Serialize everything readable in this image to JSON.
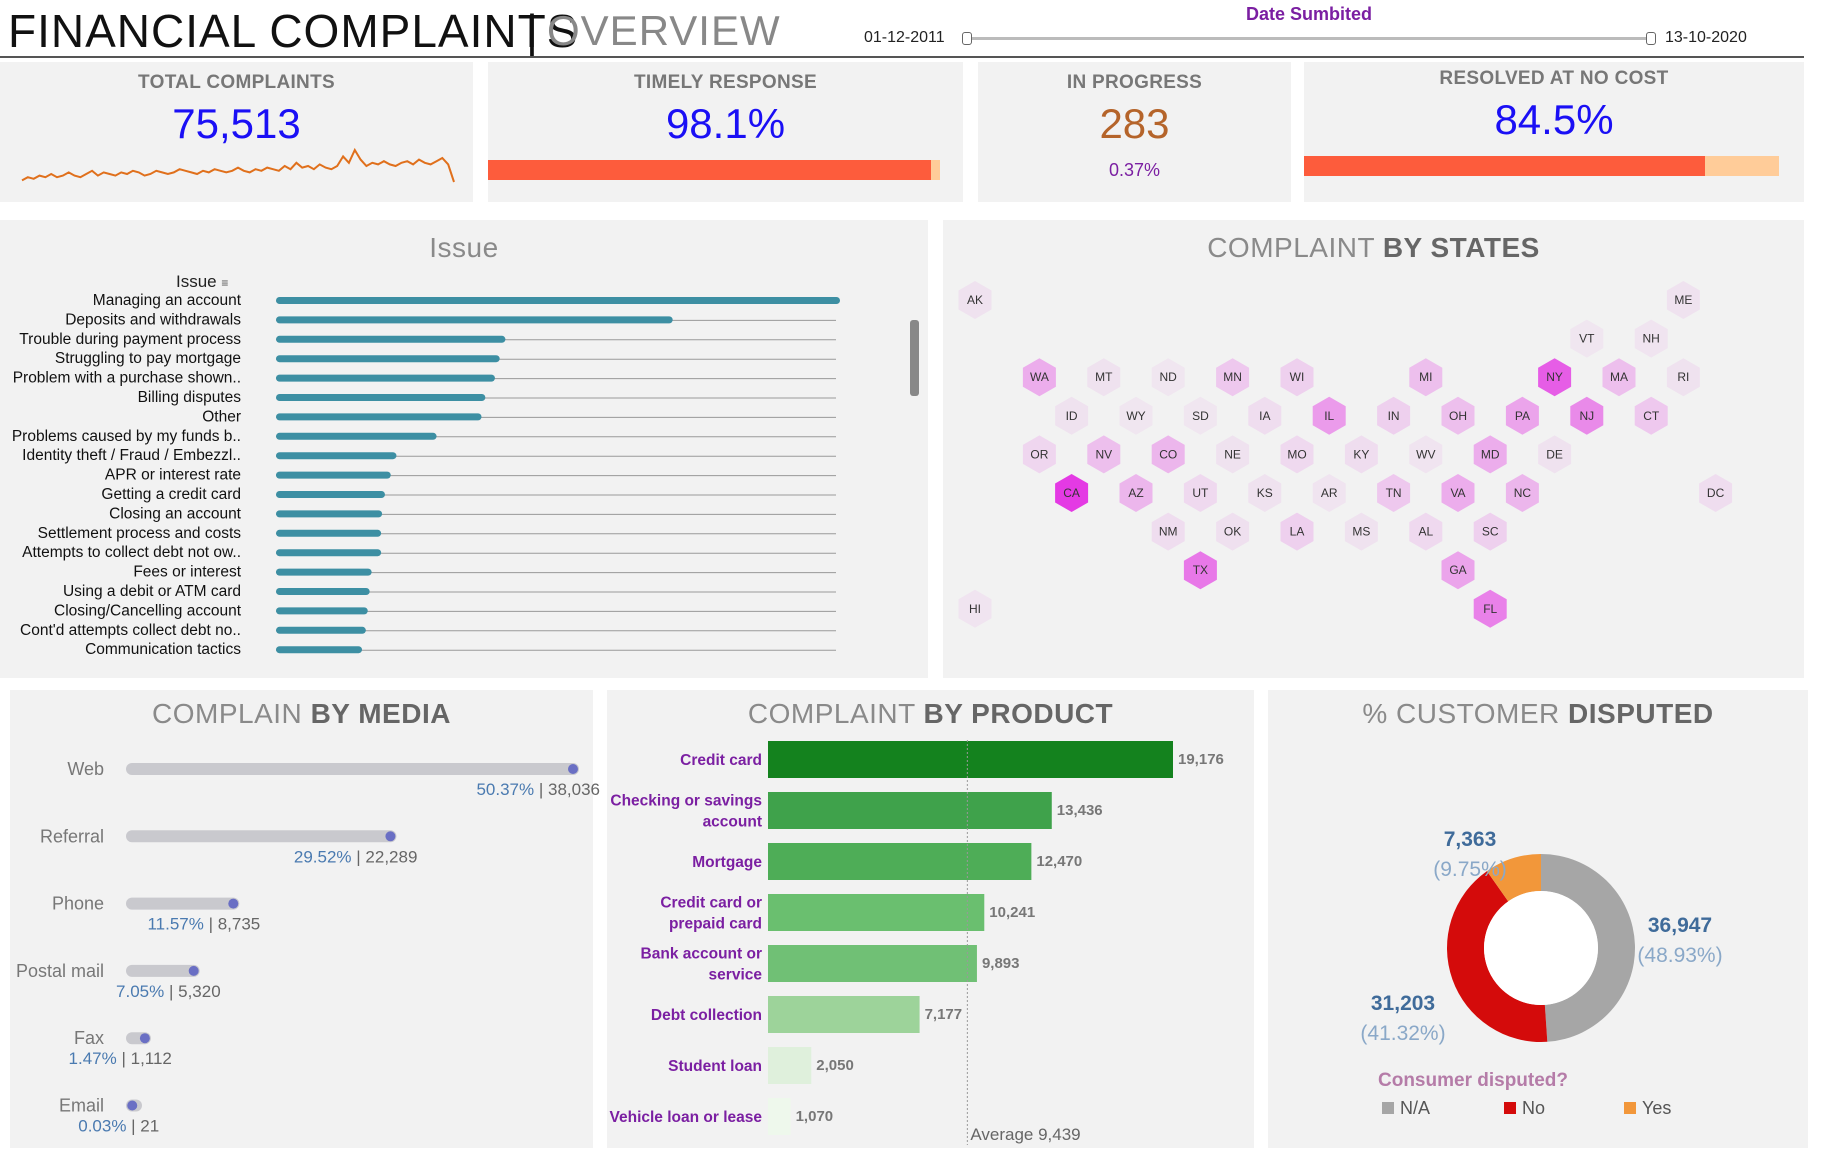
{
  "header": {
    "title": "FINANCIAL COMPLAINTS",
    "separator": "|",
    "subtitle": "OVERVIEW",
    "date_label": "Date Sumbited",
    "date_start": "01-12-2011",
    "date_end": "13-10-2020"
  },
  "kpis": {
    "total": {
      "title": "TOTAL COMPLAINTS",
      "value": "75,513"
    },
    "timely": {
      "title": "TIMELY RESPONSE",
      "value": "98.1%",
      "fraction": 0.981
    },
    "progress": {
      "title": "IN PROGRESS",
      "value": "283",
      "sub": "0.37%"
    },
    "resolved": {
      "title": "RESOLVED AT NO COST",
      "value": "84.5%",
      "fraction": 0.845
    }
  },
  "colors": {
    "blue": "#1a0ff5",
    "bar_orange": "#fd5c3c",
    "bar_light": "#ffcc99",
    "teal": "#3d8fa3",
    "purple": "#7b1fa2",
    "donut_na": "#a6a6a6",
    "donut_no": "#d40b0b",
    "donut_yes": "#f2973a"
  },
  "issue_panel": {
    "title": "Issue",
    "header": "Issue"
  },
  "states_panel": {
    "title_light": "COMPLAINT ",
    "title_bold": "BY STATES"
  },
  "media_panel": {
    "title_light": "COMPLAIN ",
    "title_bold": "BY MEDIA"
  },
  "product_panel": {
    "title_light": "COMPLAINT ",
    "title_bold": "BY PRODUCT",
    "average_label": "Average 9,439"
  },
  "disputed_panel": {
    "title_light": "% CUSTOMER ",
    "title_bold": "DISPUTED",
    "legend_title": "Consumer disputed?",
    "legend": [
      "N/A",
      "No",
      "Yes"
    ]
  },
  "chart_data": [
    {
      "type": "line",
      "title": "Total complaints trend (sparkline)",
      "values": [
        3,
        5,
        4,
        6,
        5,
        7,
        5,
        6,
        8,
        6,
        5,
        7,
        9,
        6,
        8,
        7,
        6,
        8,
        7,
        9,
        8,
        6,
        7,
        9,
        8,
        7,
        8,
        10,
        9,
        8,
        7,
        9,
        8,
        10,
        9,
        8,
        9,
        11,
        9,
        8,
        10,
        9,
        11,
        10,
        9,
        12,
        10,
        14,
        11,
        12,
        10,
        13,
        11,
        10,
        12,
        18,
        14,
        22,
        16,
        12,
        14,
        13,
        15,
        13,
        12,
        14,
        15,
        13,
        16,
        14,
        13,
        15,
        17,
        13,
        2
      ]
    },
    {
      "type": "bar",
      "title": "Issue",
      "orientation": "horizontal",
      "categories": [
        "Managing an account",
        "Deposits and withdrawals",
        "Trouble during payment process",
        "Struggling to pay mortgage",
        "Problem with a purchase shown..",
        "Billing disputes",
        "Other",
        "Problems caused by my funds b..",
        "Identity theft / Fraud / Embezzl..",
        "APR or interest rate",
        "Getting a credit card",
        "Closing an account",
        "Settlement process and costs",
        "Attempts to collect debt not ow..",
        "Fees or interest",
        "Using a debit or ATM card",
        "Closing/Cancelling account",
        "Cont'd attempts collect debt no..",
        "Communication tactics"
      ],
      "values": [
        5900,
        4150,
        2400,
        2340,
        2290,
        2190,
        2150,
        1680,
        1260,
        1200,
        1140,
        1110,
        1100,
        1100,
        1000,
        980,
        960,
        940,
        900
      ],
      "xlim": [
        0,
        5900
      ]
    },
    {
      "type": "heatmap",
      "title": "COMPLAINT BY STATES",
      "states": [
        {
          "s": "AK",
          "v": 0.05,
          "col": 0,
          "row": 0
        },
        {
          "s": "ME",
          "v": 0.05,
          "col": 11,
          "row": 0
        },
        {
          "s": "VT",
          "v": 0.03,
          "col": 9.5,
          "row": 1
        },
        {
          "s": "NH",
          "v": 0.04,
          "col": 10.5,
          "row": 1
        },
        {
          "s": "WA",
          "v": 0.35,
          "col": 1,
          "row": 2
        },
        {
          "s": "MT",
          "v": 0.05,
          "col": 2,
          "row": 2
        },
        {
          "s": "ND",
          "v": 0.03,
          "col": 3,
          "row": 2
        },
        {
          "s": "MN",
          "v": 0.2,
          "col": 4,
          "row": 2
        },
        {
          "s": "WI",
          "v": 0.15,
          "col": 5,
          "row": 2
        },
        {
          "s": "MI",
          "v": 0.25,
          "col": 7,
          "row": 2
        },
        {
          "s": "NY",
          "v": 0.8,
          "col": 9,
          "row": 2
        },
        {
          "s": "MA",
          "v": 0.25,
          "col": 10,
          "row": 2
        },
        {
          "s": "RI",
          "v": 0.05,
          "col": 11,
          "row": 2
        },
        {
          "s": "ID",
          "v": 0.05,
          "col": 1.5,
          "row": 3
        },
        {
          "s": "WY",
          "v": 0.03,
          "col": 2.5,
          "row": 3
        },
        {
          "s": "SD",
          "v": 0.03,
          "col": 3.5,
          "row": 3
        },
        {
          "s": "IA",
          "v": 0.08,
          "col": 4.5,
          "row": 3
        },
        {
          "s": "IL",
          "v": 0.45,
          "col": 5.5,
          "row": 3
        },
        {
          "s": "IN",
          "v": 0.15,
          "col": 6.5,
          "row": 3
        },
        {
          "s": "OH",
          "v": 0.25,
          "col": 7.5,
          "row": 3
        },
        {
          "s": "PA",
          "v": 0.4,
          "col": 8.5,
          "row": 3
        },
        {
          "s": "NJ",
          "v": 0.55,
          "col": 9.5,
          "row": 3
        },
        {
          "s": "CT",
          "v": 0.2,
          "col": 10.5,
          "row": 3
        },
        {
          "s": "OR",
          "v": 0.12,
          "col": 1,
          "row": 4
        },
        {
          "s": "NV",
          "v": 0.25,
          "col": 2,
          "row": 4
        },
        {
          "s": "CO",
          "v": 0.3,
          "col": 3,
          "row": 4
        },
        {
          "s": "NE",
          "v": 0.05,
          "col": 4,
          "row": 4
        },
        {
          "s": "MO",
          "v": 0.1,
          "col": 5,
          "row": 4
        },
        {
          "s": "KY",
          "v": 0.08,
          "col": 6,
          "row": 4
        },
        {
          "s": "WV",
          "v": 0.04,
          "col": 7,
          "row": 4
        },
        {
          "s": "MD",
          "v": 0.35,
          "col": 8,
          "row": 4
        },
        {
          "s": "DE",
          "v": 0.05,
          "col": 9,
          "row": 4
        },
        {
          "s": "CA",
          "v": 1.0,
          "col": 1.5,
          "row": 5
        },
        {
          "s": "AZ",
          "v": 0.3,
          "col": 2.5,
          "row": 5
        },
        {
          "s": "UT",
          "v": 0.1,
          "col": 3.5,
          "row": 5
        },
        {
          "s": "KS",
          "v": 0.05,
          "col": 4.5,
          "row": 5
        },
        {
          "s": "AR",
          "v": 0.04,
          "col": 5.5,
          "row": 5
        },
        {
          "s": "TN",
          "v": 0.2,
          "col": 6.5,
          "row": 5
        },
        {
          "s": "VA",
          "v": 0.35,
          "col": 7.5,
          "row": 5
        },
        {
          "s": "NC",
          "v": 0.3,
          "col": 8.5,
          "row": 5
        },
        {
          "s": "DC",
          "v": 0.08,
          "col": 11.5,
          "row": 5
        },
        {
          "s": "NM",
          "v": 0.08,
          "col": 3,
          "row": 6
        },
        {
          "s": "OK",
          "v": 0.06,
          "col": 4,
          "row": 6
        },
        {
          "s": "LA",
          "v": 0.15,
          "col": 5,
          "row": 6
        },
        {
          "s": "MS",
          "v": 0.05,
          "col": 6,
          "row": 6
        },
        {
          "s": "AL",
          "v": 0.1,
          "col": 7,
          "row": 6
        },
        {
          "s": "SC",
          "v": 0.15,
          "col": 8,
          "row": 6
        },
        {
          "s": "TX",
          "v": 0.65,
          "col": 3.5,
          "row": 7
        },
        {
          "s": "GA",
          "v": 0.4,
          "col": 7.5,
          "row": 7
        },
        {
          "s": "HI",
          "v": 0.04,
          "col": 0,
          "row": 8
        },
        {
          "s": "FL",
          "v": 0.6,
          "col": 8,
          "row": 8
        }
      ]
    },
    {
      "type": "bar",
      "title": "COMPLAIN BY MEDIA",
      "orientation": "horizontal",
      "categories": [
        "Web",
        "Referral",
        "Phone",
        "Postal mail",
        "Fax",
        "Email"
      ],
      "percent_labels": [
        "50.37%",
        "29.52%",
        "11.57%",
        "7.05%",
        "1.47%",
        "0.03%"
      ],
      "count_labels": [
        "38,036",
        "22,289",
        "8,735",
        "5,320",
        "1,112",
        "21"
      ],
      "values": [
        38036,
        22289,
        8735,
        5320,
        1112,
        21
      ],
      "xlim": [
        0,
        38036
      ]
    },
    {
      "type": "bar",
      "title": "COMPLAINT BY PRODUCT",
      "orientation": "horizontal",
      "categories": [
        [
          "Credit card"
        ],
        [
          "Checking or savings",
          "account"
        ],
        [
          "Mortgage"
        ],
        [
          "Credit card or",
          "prepaid card"
        ],
        [
          "Bank account or",
          "service"
        ],
        [
          "Debt collection"
        ],
        [
          "Student loan"
        ],
        [
          "Vehicle loan or lease"
        ]
      ],
      "values": [
        19176,
        13436,
        12470,
        10241,
        9893,
        7177,
        2050,
        1070
      ],
      "value_labels": [
        "19,176",
        "13,436",
        "12,470",
        "10,241",
        "9,893",
        "7,177",
        "2,050",
        "1,070"
      ],
      "average": 9439,
      "xlim": [
        0,
        19176
      ]
    },
    {
      "type": "pie",
      "title": "% CUSTOMER DISPUTED",
      "slices": [
        {
          "name": "N/A",
          "value": 36947,
          "label": "36,947",
          "pct": "(48.93%)"
        },
        {
          "name": "No",
          "value": 31203,
          "label": "31,203",
          "pct": "(41.32%)"
        },
        {
          "name": "Yes",
          "value": 7363,
          "label": "7,363",
          "pct": "(9.75%)"
        }
      ]
    }
  ]
}
